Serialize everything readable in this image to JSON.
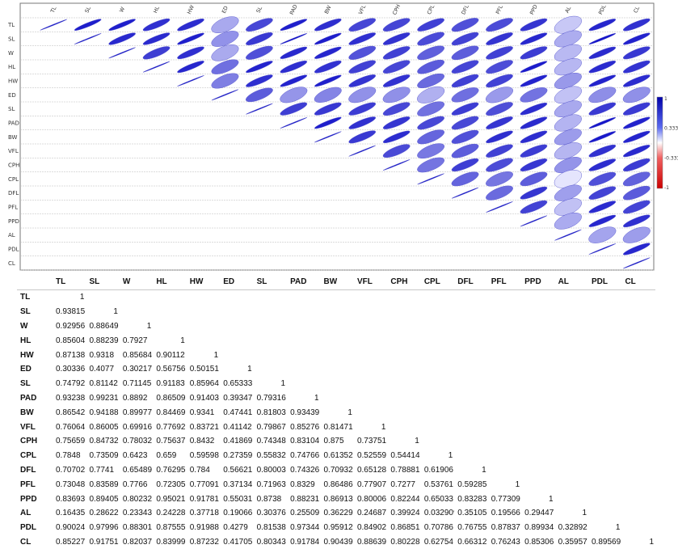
{
  "chart_data": [
    {
      "type": "heatmap",
      "subtype": "correlation-ellipse-plot",
      "triangle": "upper",
      "variables": [
        "TL",
        "SL",
        "W",
        "HL",
        "HW",
        "ED",
        "SL",
        "PAD",
        "BW",
        "VFL",
        "CPH",
        "CPL",
        "DFL",
        "PFL",
        "PPD",
        "AL",
        "PDL",
        "CL"
      ],
      "colorbar": {
        "ticks": [
          "1",
          "0.333",
          "-0.333",
          "-1"
        ],
        "range": [
          -1,
          1
        ],
        "position": "right"
      },
      "colors": {
        "positive": "#1010c8",
        "neutral": "#f0f0ff",
        "negative": "#d00000",
        "border": "#777777"
      }
    },
    {
      "type": "table",
      "columns": [
        "TL",
        "SL",
        "W",
        "HL",
        "HW",
        "ED",
        "SL",
        "PAD",
        "BW",
        "VFL",
        "CPH",
        "CPL",
        "DFL",
        "PFL",
        "PPD",
        "AL",
        "PDL",
        "CL"
      ],
      "rows": [
        {
          "name": "TL",
          "values": [
            "1"
          ]
        },
        {
          "name": "SL",
          "values": [
            "0.93815",
            "1"
          ]
        },
        {
          "name": "W",
          "values": [
            "0.92956",
            "0.88649",
            "1"
          ]
        },
        {
          "name": "HL",
          "values": [
            "0.85604",
            "0.88239",
            "0.7927",
            "1"
          ]
        },
        {
          "name": "HW",
          "values": [
            "0.87138",
            "0.9318",
            "0.85684",
            "0.90112",
            "1"
          ]
        },
        {
          "name": "ED",
          "values": [
            "0.30336",
            "0.4077",
            "0.30217",
            "0.56756",
            "0.50151",
            "1"
          ]
        },
        {
          "name": "SL",
          "values": [
            "0.74792",
            "0.81142",
            "0.71145",
            "0.91183",
            "0.85964",
            "0.65333",
            "1"
          ]
        },
        {
          "name": "PAD",
          "values": [
            "0.93238",
            "0.99231",
            "0.8892",
            "0.86509",
            "0.91403",
            "0.39347",
            "0.79316",
            "1"
          ]
        },
        {
          "name": "BW",
          "values": [
            "0.86542",
            "0.94188",
            "0.89977",
            "0.84469",
            "0.9341",
            "0.47441",
            "0.81803",
            "0.93439",
            "1"
          ]
        },
        {
          "name": "VFL",
          "values": [
            "0.76064",
            "0.86005",
            "0.69916",
            "0.77692",
            "0.83721",
            "0.41142",
            "0.79867",
            "0.85276",
            "0.81471",
            "1"
          ]
        },
        {
          "name": "CPH",
          "values": [
            "0.75659",
            "0.84732",
            "0.78032",
            "0.75637",
            "0.8432",
            "0.41869",
            "0.74348",
            "0.83104",
            "0.875",
            "0.73751",
            "1"
          ]
        },
        {
          "name": "CPL",
          "values": [
            "0.7848",
            "0.73509",
            "0.6423",
            "0.659",
            "0.59598",
            "0.27359",
            "0.55832",
            "0.74766",
            "0.61352",
            "0.52559",
            "0.54414",
            "1"
          ]
        },
        {
          "name": "DFL",
          "values": [
            "0.70702",
            "0.7741",
            "0.65489",
            "0.76295",
            "0.784",
            "0.56621",
            "0.80003",
            "0.74326",
            "0.70932",
            "0.65128",
            "0.78881",
            "0.61906",
            "1"
          ]
        },
        {
          "name": "PFL",
          "values": [
            "0.73048",
            "0.83589",
            "0.7766",
            "0.72305",
            "0.77091",
            "0.37134",
            "0.71963",
            "0.8329",
            "0.86486",
            "0.77907",
            "0.7277",
            "0.53761",
            "0.59285",
            "1"
          ]
        },
        {
          "name": "PPD",
          "values": [
            "0.83693",
            "0.89405",
            "0.80232",
            "0.95021",
            "0.91781",
            "0.55031",
            "0.8738",
            "0.88231",
            "0.86913",
            "0.80006",
            "0.82244",
            "0.65033",
            "0.83283",
            "0.77309",
            "1"
          ]
        },
        {
          "name": "AL",
          "values": [
            "0.16435",
            "0.28622",
            "0.23343",
            "0.24228",
            "0.37718",
            "0.19066",
            "0.30376",
            "0.25509",
            "0.36229",
            "0.24687",
            "0.39924",
            "0.032909",
            "0.35105",
            "0.19566",
            "0.29447",
            "1"
          ]
        },
        {
          "name": "PDL",
          "values": [
            "0.90024",
            "0.97996",
            "0.88301",
            "0.87555",
            "0.91988",
            "0.4279",
            "0.81538",
            "0.97344",
            "0.95912",
            "0.84902",
            "0.86851",
            "0.70786",
            "0.76755",
            "0.87837",
            "0.89934",
            "0.32892",
            "1"
          ]
        },
        {
          "name": "CL",
          "values": [
            "0.85227",
            "0.91751",
            "0.82037",
            "0.83999",
            "0.87232",
            "0.41705",
            "0.80343",
            "0.91784",
            "0.90439",
            "0.88639",
            "0.80228",
            "0.62754",
            "0.66312",
            "0.76243",
            "0.85306",
            "0.35957",
            "0.89569",
            "1"
          ]
        }
      ]
    }
  ]
}
